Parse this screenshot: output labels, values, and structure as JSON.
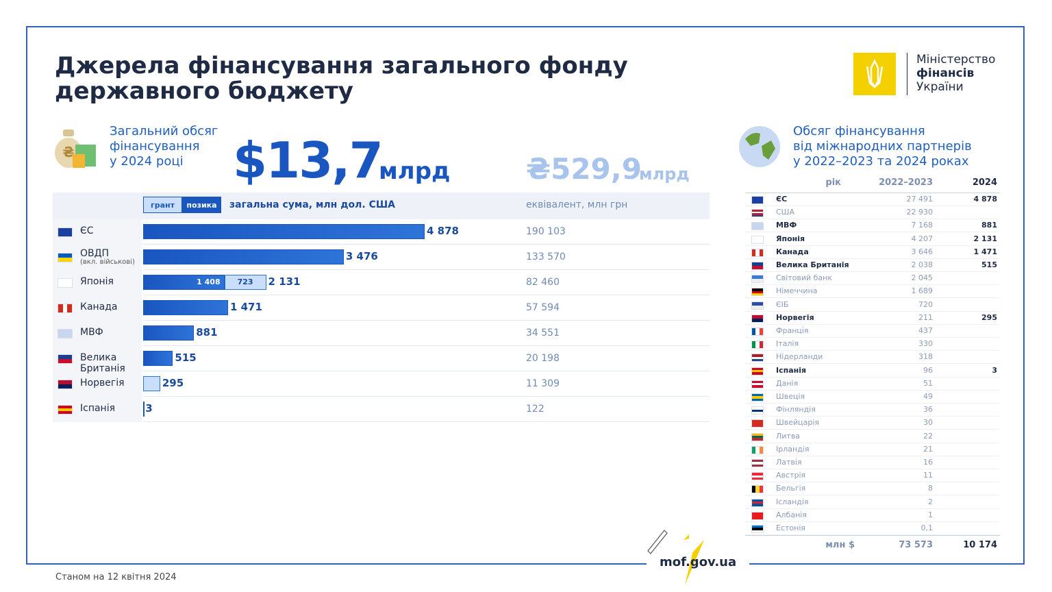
{
  "header": {
    "title_lines": [
      "Джерела фінансування загального фонду",
      "державного бюджету"
    ],
    "logo_lines": [
      "Міністерство",
      "фінансів",
      "України"
    ]
  },
  "summary": {
    "caption_lines": [
      "Загальний обсяг",
      "фінансування",
      "у 2024 році"
    ],
    "usd_total": "$13,7",
    "usd_unit": "млрд",
    "uah_total": "₴529,9",
    "uah_unit": "млрд"
  },
  "chart_data": {
    "type": "bar",
    "orientation": "horizontal",
    "stacked": true,
    "categories": [
      "ЄС",
      "ОВДП",
      "Японія",
      "Канада",
      "МВФ",
      "Велика Британія",
      "Норвегія",
      "Іспанія"
    ],
    "category_notes": [
      null,
      "(вкл. військові)",
      null,
      null,
      null,
      null,
      null,
      null
    ],
    "series": [
      {
        "name": "позика",
        "color": "#1a56c0",
        "values": [
          4878,
          3476,
          1408,
          1471,
          881,
          515,
          null,
          3
        ],
        "value_labels": [
          null,
          null,
          "1 408",
          null,
          null,
          null,
          null,
          null
        ]
      },
      {
        "name": "грант",
        "color": "#c9defa",
        "values": [
          null,
          null,
          723,
          null,
          null,
          null,
          295,
          null
        ],
        "value_labels": [
          null,
          null,
          "723",
          null,
          null,
          null,
          null,
          null
        ]
      }
    ],
    "totals": {
      "values": [
        4878,
        3476,
        2131,
        1471,
        881,
        515,
        295,
        3
      ],
      "value_labels": [
        "4 878",
        "3 476",
        "2 131",
        "1 471",
        "881",
        "515",
        "295",
        "3"
      ]
    },
    "value_axis_label": "загальна сума, млн дол. США",
    "equivalent_label": "еквівалент, млн грн",
    "equivalent": [
      "190 103",
      "133 570",
      "82 460",
      "57 594",
      "34 551",
      "20 198",
      "11 309",
      "122"
    ]
  },
  "partners": {
    "title_lines": [
      "Обсяг фінансування",
      "від міжнародних партнерів",
      "у 2022–2023 та 2024 роках"
    ],
    "columns": [
      "рік",
      "2022–2023",
      "2024"
    ],
    "rows": [
      [
        "ЄС",
        "27 491",
        "4 878"
      ],
      [
        "США",
        "22 930",
        null
      ],
      [
        "МВФ",
        "7 168",
        "881"
      ],
      [
        "Японія",
        "4 207",
        "2 131"
      ],
      [
        "Канада",
        "3 646",
        "1 471"
      ],
      [
        "Велика Британія",
        "2 038",
        "515"
      ],
      [
        "Світовий банк",
        "2 045",
        null
      ],
      [
        "Німеччина",
        "1 689",
        null
      ],
      [
        "ЄІБ",
        "720",
        null
      ],
      [
        "Норвегія",
        "211",
        "295"
      ],
      [
        "Франція",
        "437",
        null
      ],
      [
        "Італія",
        "330",
        null
      ],
      [
        "Нідерланди",
        "318",
        null
      ],
      [
        "Іспанія",
        "96",
        "3"
      ],
      [
        "Данія",
        "51",
        null
      ],
      [
        "Швеція",
        "49",
        null
      ],
      [
        "Фінляндія",
        "36",
        null
      ],
      [
        "Швейцарія",
        "30",
        null
      ],
      [
        "Литва",
        "22",
        null
      ],
      [
        "Ірландія",
        "21",
        null
      ],
      [
        "Латвія",
        "16",
        null
      ],
      [
        "Австрія",
        "11",
        null
      ],
      [
        "Бельгія",
        "8",
        null
      ],
      [
        "Ісландія",
        "2",
        null
      ],
      [
        "Албанія",
        "1",
        null
      ],
      [
        "Естонія",
        "0,1",
        null
      ]
    ],
    "footer": [
      "млн $",
      "73 573",
      "10 174"
    ]
  },
  "footer": {
    "date": "Станом на 12 квітня 2024",
    "site": "mof.gov.ua"
  }
}
